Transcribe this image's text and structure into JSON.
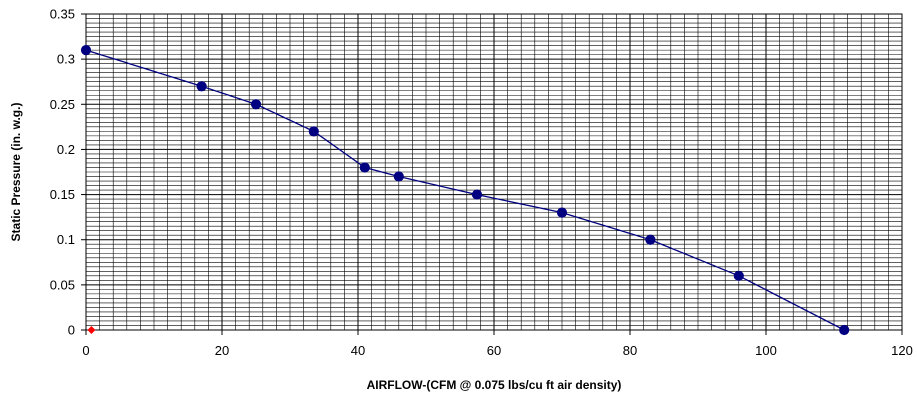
{
  "chart_data": {
    "type": "line",
    "title": "",
    "xlabel": "AIRFLOW-(CFM @ 0.075 lbs/cu ft air density)",
    "ylabel": "Static Pressure (in. w.g.)",
    "xlim": [
      0,
      120
    ],
    "ylim": [
      0,
      0.35
    ],
    "x_ticks": [
      "0",
      "20",
      "40",
      "60",
      "80",
      "100",
      "120"
    ],
    "y_ticks": [
      "0",
      "0.05",
      "0.1",
      "0.15",
      "0.2",
      "0.25",
      "0.3",
      "0.35"
    ],
    "grid": true,
    "legend": "none",
    "colors": {
      "series_line": "#000080",
      "series_marker": "#000080",
      "reference_marker": "#ff0000",
      "grid_major": "#000000",
      "grid_minor": "#000000"
    },
    "series": [
      {
        "x": [
          0,
          17,
          25,
          33.5,
          41,
          46,
          57.5,
          70,
          83,
          96,
          111.5
        ],
        "y": [
          0.31,
          0.27,
          0.25,
          0.22,
          0.18,
          0.17,
          0.15,
          0.13,
          0.1,
          0.06,
          0.0
        ],
        "marker": "circle"
      },
      {
        "x": [
          0.8
        ],
        "y": [
          0.0
        ],
        "marker": "diamond"
      }
    ]
  }
}
